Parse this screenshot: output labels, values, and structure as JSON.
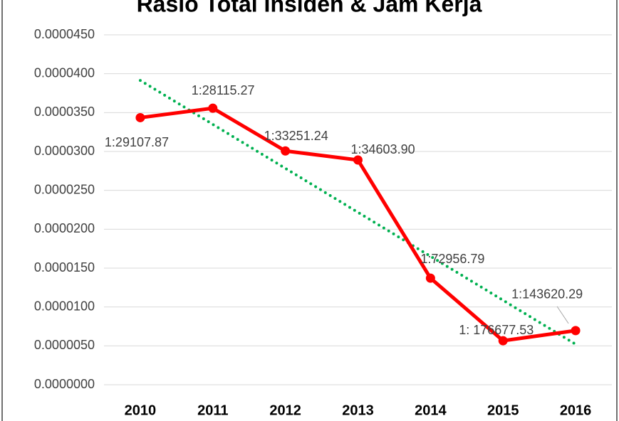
{
  "chart_data": {
    "type": "line",
    "title": "Rasio Total Insiden & Jam Kerja",
    "categories": [
      "2010",
      "2011",
      "2012",
      "2013",
      "2014",
      "2015",
      "2016"
    ],
    "series": [
      {
        "name": "Rasio",
        "color": "#ff0000",
        "values": [
          3.435e-05,
          3.557e-05,
          3.007e-05,
          2.89e-05,
          1.371e-05,
          5.66e-06,
          6.96e-06
        ],
        "value_labels": [
          "1:29107.87",
          "1:28115.27",
          "1:33251.24",
          "1:34603.90",
          "1:72956.79",
          "1: 176677.53",
          "1:143620.29"
        ]
      }
    ],
    "trendline": {
      "type": "linear",
      "color": "#00b050",
      "style": "dotted"
    },
    "ylim": [
      0,
      4.5e-05
    ],
    "yticks": [
      {
        "value": 0,
        "label": "0.0000000"
      },
      {
        "value": 5e-06,
        "label": "0.0000050"
      },
      {
        "value": 1e-05,
        "label": "0.0000100"
      },
      {
        "value": 1.5e-05,
        "label": "0.0000150"
      },
      {
        "value": 2e-05,
        "label": "0.0000200"
      },
      {
        "value": 2.5e-05,
        "label": "0.0000250"
      },
      {
        "value": 3e-05,
        "label": "0.0000300"
      },
      {
        "value": 3.5e-05,
        "label": "0.0000350"
      },
      {
        "value": 4e-05,
        "label": "0.0000400"
      },
      {
        "value": 4.5e-05,
        "label": "0.0000450"
      }
    ],
    "grid": true
  }
}
